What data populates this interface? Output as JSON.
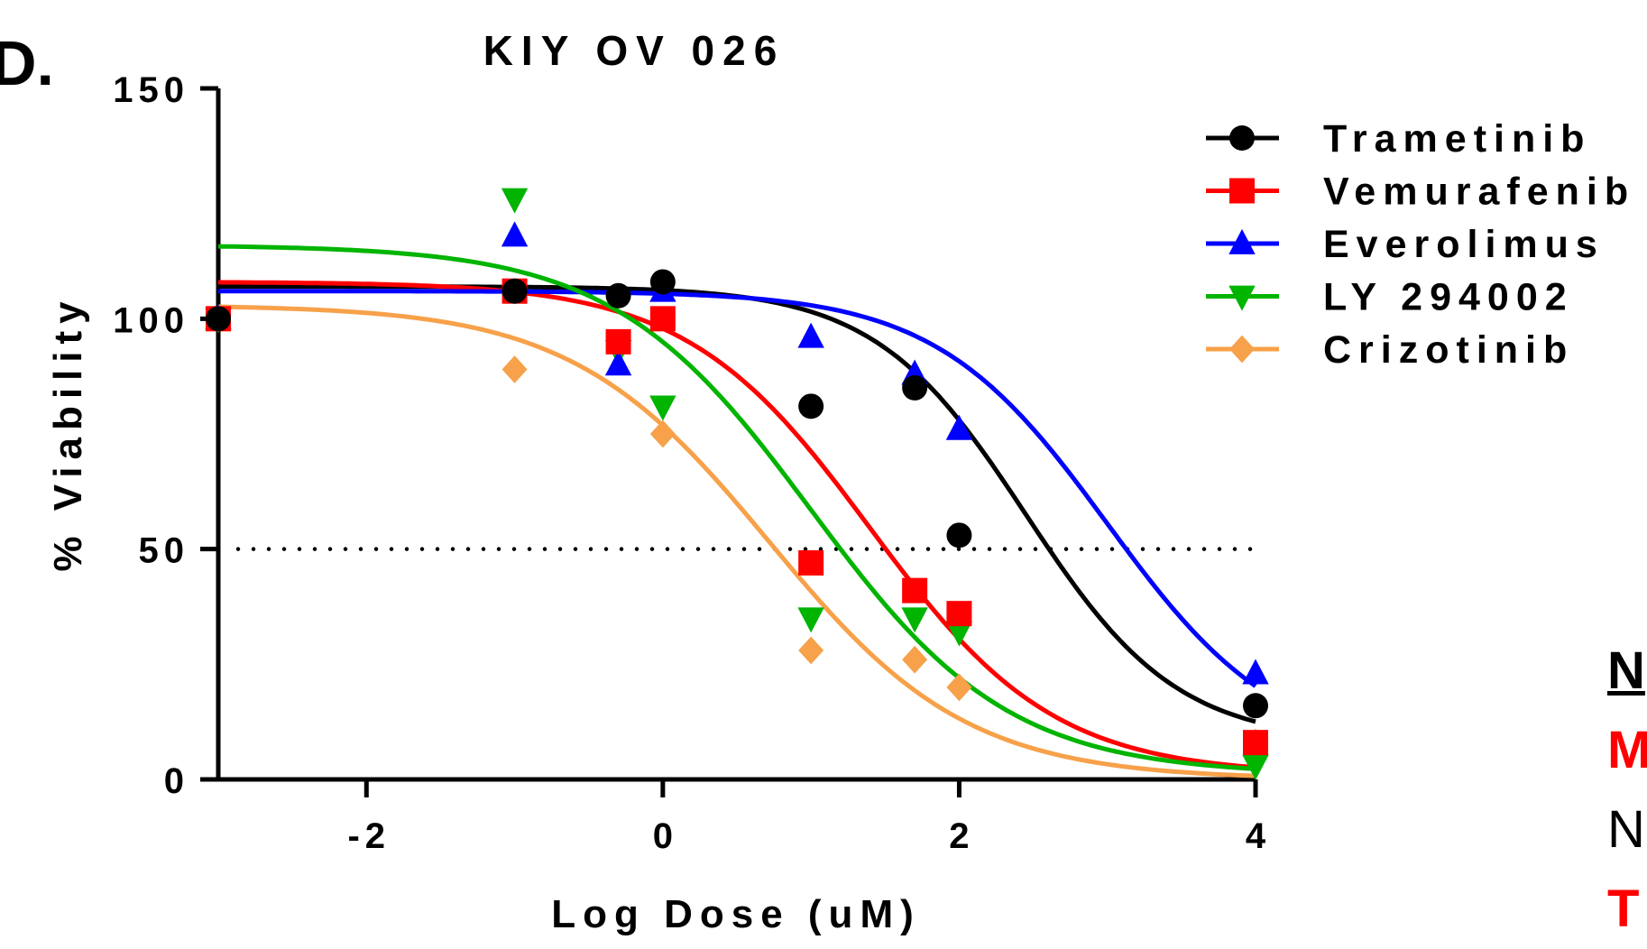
{
  "panel_label": "D.",
  "side_notes": [
    "N",
    "M",
    "N",
    "T"
  ],
  "colors": {
    "Trametinib": "#000000",
    "Vemurafenib": "#ff0000",
    "Everolimus": "#0000ff",
    "LY 294002": "#00b400",
    "Crizotinib": "#f7a14a"
  },
  "chart_data": {
    "type": "scatter",
    "title": "KIY OV 026",
    "xlabel": "Log Dose (uM)",
    "ylabel": "% Viability",
    "xlim": [
      -3,
      4
    ],
    "ylim": [
      0,
      150
    ],
    "xticks": [
      "-2",
      "0",
      "2",
      "4"
    ],
    "xtick_values": [
      -2,
      0,
      2,
      4
    ],
    "yticks": [
      "0",
      "50",
      "100",
      "150"
    ],
    "ytick_values": [
      0,
      50,
      100,
      150
    ],
    "reference_line": {
      "y": 50,
      "style": "dotted"
    },
    "legend": {
      "position": "top-right",
      "entries": [
        "Trametinib",
        "Vemurafenib",
        "Everolimus",
        "LY 294002",
        "Crizotinib"
      ]
    },
    "series": [
      {
        "name": "Trametinib",
        "marker": "circle",
        "points": [
          [
            -3,
            100
          ],
          [
            -1,
            106
          ],
          [
            -0.3,
            105
          ],
          [
            0,
            108
          ],
          [
            1,
            81
          ],
          [
            1.7,
            85
          ],
          [
            2,
            53
          ],
          [
            4,
            16
          ]
        ],
        "fit": {
          "top": 107,
          "bottom": 8,
          "logIC50": 2.45,
          "hill": 0.85
        }
      },
      {
        "name": "Vemurafenib",
        "marker": "square",
        "points": [
          [
            -3,
            100
          ],
          [
            -1,
            106
          ],
          [
            -0.3,
            95
          ],
          [
            0,
            100
          ],
          [
            1,
            47
          ],
          [
            1.7,
            41
          ],
          [
            2,
            36
          ],
          [
            4,
            8
          ]
        ],
        "fit": {
          "top": 108,
          "bottom": 1,
          "logIC50": 1.4,
          "hill": 0.7
        }
      },
      {
        "name": "Everolimus",
        "marker": "triangle-up",
        "points": [
          [
            -3,
            100
          ],
          [
            -1,
            118
          ],
          [
            -0.3,
            90
          ],
          [
            0,
            106
          ],
          [
            1,
            96
          ],
          [
            1.7,
            88
          ],
          [
            2,
            76
          ],
          [
            4,
            23
          ]
        ],
        "fit": {
          "top": 106,
          "bottom": 5,
          "logIC50": 3.0,
          "hill": 0.75
        }
      },
      {
        "name": "LY 294002",
        "marker": "triangle-down",
        "points": [
          [
            -3,
            100
          ],
          [
            -1,
            126
          ],
          [
            -0.3,
            93
          ],
          [
            0,
            81
          ],
          [
            1,
            35
          ],
          [
            1.7,
            35
          ],
          [
            2,
            32
          ],
          [
            4,
            3
          ]
        ],
        "fit": {
          "top": 116,
          "bottom": 1,
          "logIC50": 1.0,
          "hill": 0.65
        }
      },
      {
        "name": "Crizotinib",
        "marker": "diamond",
        "points": [
          [
            -3,
            100
          ],
          [
            -1,
            89
          ],
          [
            0,
            75
          ],
          [
            1,
            28
          ],
          [
            1.7,
            26
          ],
          [
            2,
            20
          ],
          [
            4,
            8
          ]
        ],
        "fit": {
          "top": 103,
          "bottom": 0,
          "logIC50": 0.72,
          "hill": 0.65
        }
      }
    ]
  }
}
